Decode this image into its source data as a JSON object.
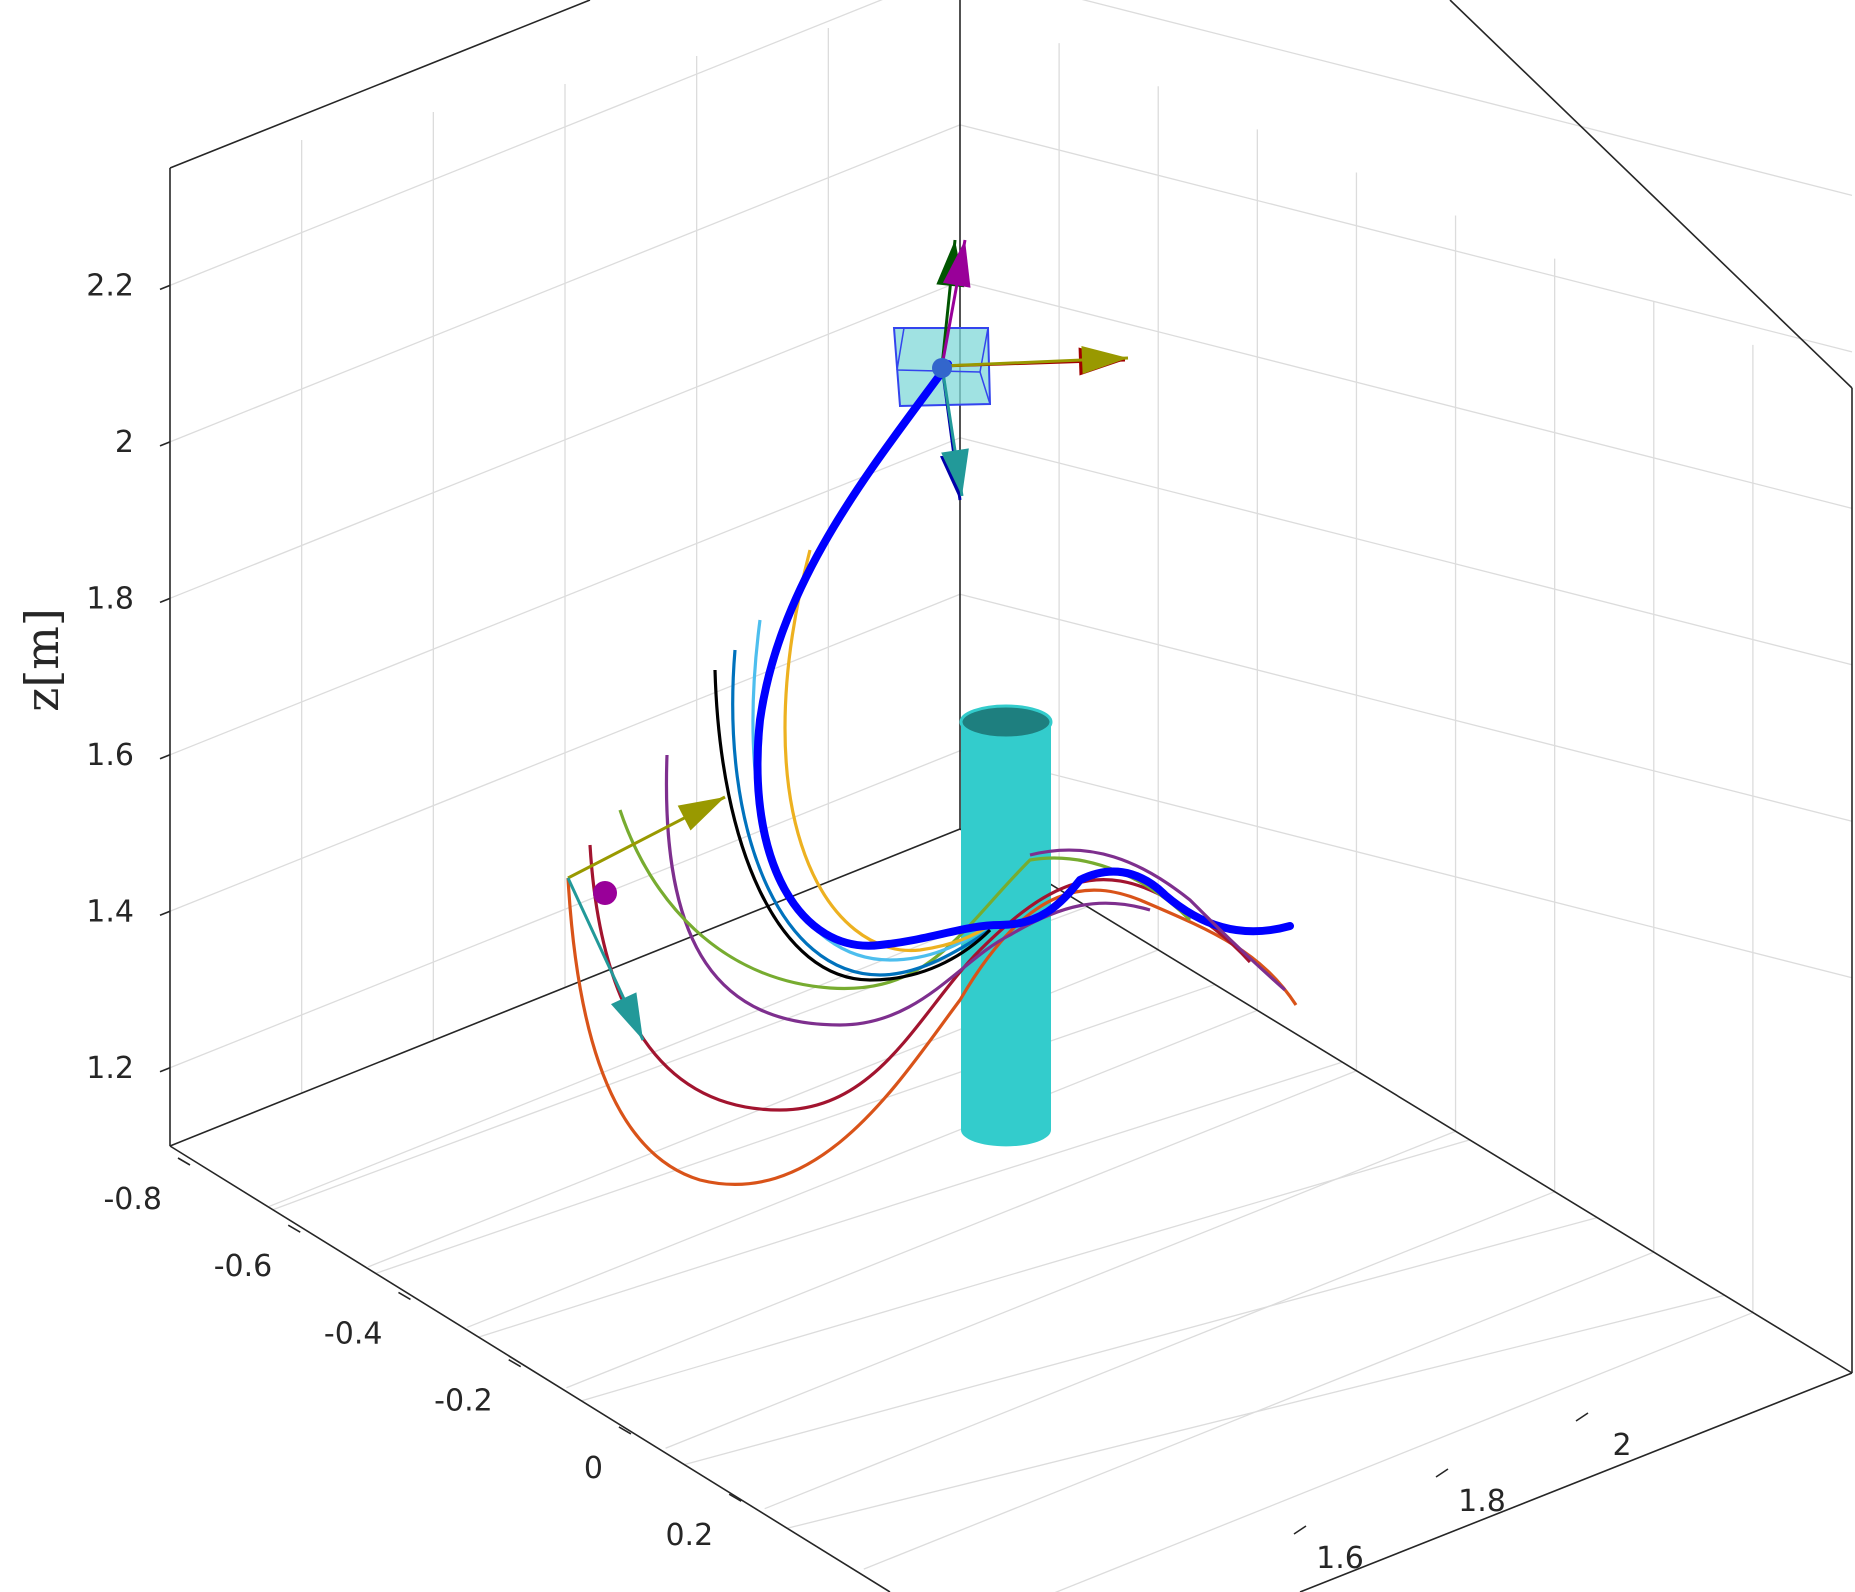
{
  "chart_data": {
    "type": "line",
    "title": "",
    "zlabel": "z[m]",
    "axes": {
      "x": {
        "ticks": [
          "-0.8",
          "-0.6",
          "-0.4",
          "-0.2",
          "0",
          "0.2"
        ]
      },
      "y": {
        "ticks": [
          "1.6",
          "1.8",
          "2"
        ]
      },
      "z": {
        "ticks": [
          "1.2",
          "1.4",
          "1.6",
          "1.8",
          "2",
          "2.2"
        ],
        "range": [
          1.1,
          2.35
        ]
      }
    },
    "grid": true,
    "series": [
      {
        "color": "#0000ff",
        "role": "reference path"
      },
      {
        "color": "#d95319"
      },
      {
        "color": "#a2142f"
      },
      {
        "color": "#7e2f8e"
      },
      {
        "color": "#77ac30"
      },
      {
        "color": "#0072bd"
      },
      {
        "color": "#4dbeee"
      },
      {
        "color": "#edb120"
      },
      {
        "color": "#000000"
      }
    ],
    "objects": [
      {
        "kind": "cylinder obstacle",
        "color": "#33cccc"
      },
      {
        "kind": "goal box",
        "color": "#80d8d8"
      }
    ]
  }
}
